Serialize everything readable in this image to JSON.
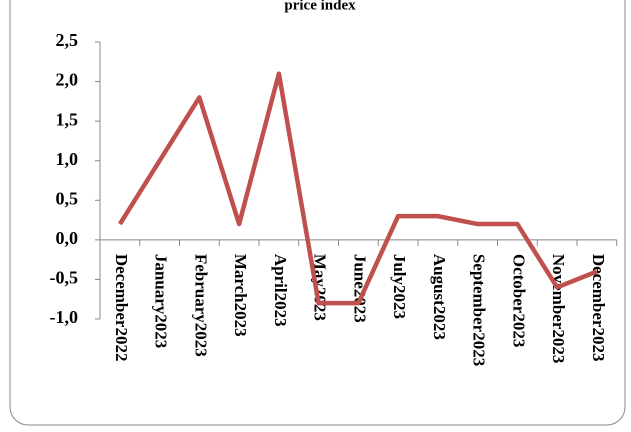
{
  "chart_data": {
    "type": "line",
    "title": "price index",
    "categories": [
      "December2022",
      "January2023",
      "February2023",
      "March2023",
      "April2023",
      "May2023",
      "June2023",
      "July2023",
      "August2023",
      "September2023",
      "October2023",
      "November2023",
      "December2023"
    ],
    "series": [
      {
        "name": "price index",
        "color": "#c0504d",
        "values": [
          0.2,
          1.0,
          1.8,
          0.2,
          2.1,
          -0.8,
          -0.8,
          0.3,
          0.3,
          0.2,
          0.2,
          -0.6,
          -0.4
        ]
      }
    ],
    "ylim": [
      -1.0,
      2.5
    ],
    "yticks": [
      {
        "value": -1.0,
        "label": "-1,0"
      },
      {
        "value": -0.5,
        "label": "-0,5"
      },
      {
        "value": 0.0,
        "label": "0,0"
      },
      {
        "value": 0.5,
        "label": "0,5"
      },
      {
        "value": 1.0,
        "label": "1,0"
      },
      {
        "value": 1.5,
        "label": "1,5"
      },
      {
        "value": 2.0,
        "label": "2,0"
      },
      {
        "value": 2.5,
        "label": "2,5"
      }
    ]
  }
}
